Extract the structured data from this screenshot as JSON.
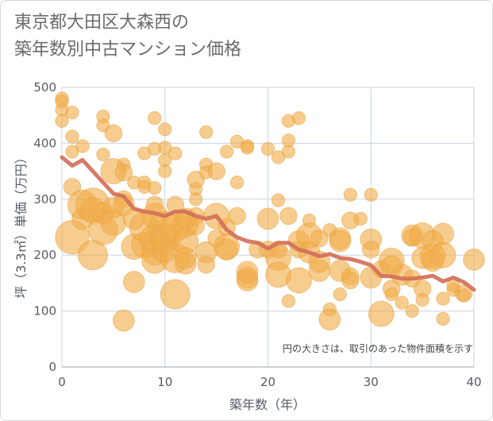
{
  "title": {
    "line1": "東京都大田区大森西の",
    "line2": "築年数別中古マンション価格"
  },
  "colors": {
    "bubble": "#f0ac4a",
    "bubble_stroke": "#e8a03a",
    "line": "#d2705a",
    "grid": "#c9d6e3",
    "axis": "#9aa4b0"
  },
  "chart_data": {
    "type": "scatter",
    "xlabel": "築年数（年）",
    "ylabel": "坪（3.3㎡）単価（万円）",
    "xlim": [
      0,
      40
    ],
    "ylim": [
      0,
      500
    ],
    "xticks": [
      "0",
      "10",
      "20",
      "30",
      "40"
    ],
    "yticks": [
      "0",
      "100",
      "200",
      "300",
      "400",
      "500"
    ],
    "grid": true,
    "note": "円の大きさは、取引のあった物件面積を示す",
    "trend_line": {
      "x": [
        0,
        1,
        2,
        3,
        4,
        5,
        6,
        7,
        8,
        9,
        10,
        11,
        12,
        13,
        14,
        15,
        16,
        17,
        18,
        19,
        20,
        21,
        22,
        23,
        24,
        25,
        26,
        27,
        28,
        29,
        30,
        31,
        32,
        33,
        34,
        35,
        36,
        37,
        38,
        39,
        40
      ],
      "y": [
        375,
        360,
        370,
        350,
        330,
        310,
        305,
        283,
        278,
        275,
        270,
        278,
        278,
        270,
        265,
        270,
        245,
        232,
        225,
        222,
        212,
        222,
        222,
        210,
        205,
        198,
        202,
        195,
        193,
        188,
        182,
        163,
        162,
        158,
        158,
        160,
        163,
        153,
        160,
        152,
        138
      ]
    },
    "bubbles": [
      {
        "x": 0,
        "y": 480,
        "s": 2
      },
      {
        "x": 0,
        "y": 460,
        "s": 2
      },
      {
        "x": 0,
        "y": 440,
        "s": 2
      },
      {
        "x": 0,
        "y": 475,
        "s": 2
      },
      {
        "x": 1,
        "y": 455,
        "s": 2
      },
      {
        "x": 1,
        "y": 412,
        "s": 2
      },
      {
        "x": 1,
        "y": 385,
        "s": 2
      },
      {
        "x": 1,
        "y": 232,
        "s": 7
      },
      {
        "x": 1,
        "y": 322,
        "s": 3
      },
      {
        "x": 2,
        "y": 395,
        "s": 2
      },
      {
        "x": 2,
        "y": 290,
        "s": 6
      },
      {
        "x": 2,
        "y": 265,
        "s": 4
      },
      {
        "x": 3,
        "y": 290,
        "s": 7
      },
      {
        "x": 3,
        "y": 200,
        "s": 6
      },
      {
        "x": 3,
        "y": 280,
        "s": 5
      },
      {
        "x": 4,
        "y": 448,
        "s": 2
      },
      {
        "x": 4,
        "y": 432,
        "s": 2
      },
      {
        "x": 4,
        "y": 380,
        "s": 2
      },
      {
        "x": 4,
        "y": 245,
        "s": 6
      },
      {
        "x": 4,
        "y": 275,
        "s": 4
      },
      {
        "x": 5,
        "y": 418,
        "s": 3
      },
      {
        "x": 5,
        "y": 350,
        "s": 5
      },
      {
        "x": 5,
        "y": 285,
        "s": 4
      },
      {
        "x": 5,
        "y": 258,
        "s": 5
      },
      {
        "x": 6,
        "y": 362,
        "s": 2
      },
      {
        "x": 6,
        "y": 348,
        "s": 3
      },
      {
        "x": 6,
        "y": 300,
        "s": 3
      },
      {
        "x": 6,
        "y": 290,
        "s": 4
      },
      {
        "x": 6,
        "y": 83,
        "s": 4
      },
      {
        "x": 7,
        "y": 330,
        "s": 2
      },
      {
        "x": 7,
        "y": 265,
        "s": 4
      },
      {
        "x": 7,
        "y": 215,
        "s": 5
      },
      {
        "x": 7,
        "y": 152,
        "s": 4
      },
      {
        "x": 8,
        "y": 382,
        "s": 2
      },
      {
        "x": 8,
        "y": 330,
        "s": 2
      },
      {
        "x": 8,
        "y": 322,
        "s": 2
      },
      {
        "x": 8,
        "y": 250,
        "s": 6
      },
      {
        "x": 8,
        "y": 218,
        "s": 5
      },
      {
        "x": 9,
        "y": 445,
        "s": 2
      },
      {
        "x": 9,
        "y": 390,
        "s": 2
      },
      {
        "x": 9,
        "y": 320,
        "s": 2
      },
      {
        "x": 9,
        "y": 290,
        "s": 3
      },
      {
        "x": 9,
        "y": 270,
        "s": 5
      },
      {
        "x": 9,
        "y": 228,
        "s": 6
      },
      {
        "x": 9,
        "y": 205,
        "s": 5
      },
      {
        "x": 9,
        "y": 190,
        "s": 5
      },
      {
        "x": 10,
        "y": 425,
        "s": 2
      },
      {
        "x": 10,
        "y": 392,
        "s": 2
      },
      {
        "x": 10,
        "y": 370,
        "s": 2
      },
      {
        "x": 10,
        "y": 350,
        "s": 2
      },
      {
        "x": 10,
        "y": 248,
        "s": 7
      },
      {
        "x": 10,
        "y": 230,
        "s": 6
      },
      {
        "x": 10,
        "y": 210,
        "s": 5
      },
      {
        "x": 11,
        "y": 382,
        "s": 2
      },
      {
        "x": 11,
        "y": 290,
        "s": 3
      },
      {
        "x": 11,
        "y": 250,
        "s": 6
      },
      {
        "x": 11,
        "y": 195,
        "s": 6
      },
      {
        "x": 11,
        "y": 130,
        "s": 6
      },
      {
        "x": 12,
        "y": 265,
        "s": 4
      },
      {
        "x": 12,
        "y": 255,
        "s": 5
      },
      {
        "x": 12,
        "y": 225,
        "s": 5
      },
      {
        "x": 12,
        "y": 195,
        "s": 4
      },
      {
        "x": 12,
        "y": 185,
        "s": 4
      },
      {
        "x": 13,
        "y": 335,
        "s": 3
      },
      {
        "x": 13,
        "y": 318,
        "s": 2
      },
      {
        "x": 13,
        "y": 300,
        "s": 2
      },
      {
        "x": 13,
        "y": 270,
        "s": 3
      },
      {
        "x": 13,
        "y": 252,
        "s": 3
      },
      {
        "x": 14,
        "y": 420,
        "s": 2
      },
      {
        "x": 14,
        "y": 362,
        "s": 2
      },
      {
        "x": 14,
        "y": 348,
        "s": 2
      },
      {
        "x": 14,
        "y": 205,
        "s": 4
      },
      {
        "x": 14,
        "y": 183,
        "s": 3
      },
      {
        "x": 15,
        "y": 350,
        "s": 3
      },
      {
        "x": 15,
        "y": 270,
        "s": 5
      },
      {
        "x": 15,
        "y": 230,
        "s": 3
      },
      {
        "x": 16,
        "y": 385,
        "s": 2
      },
      {
        "x": 16,
        "y": 250,
        "s": 3
      },
      {
        "x": 16,
        "y": 215,
        "s": 5
      },
      {
        "x": 16,
        "y": 210,
        "s": 4
      },
      {
        "x": 17,
        "y": 403,
        "s": 2
      },
      {
        "x": 17,
        "y": 330,
        "s": 2
      },
      {
        "x": 17,
        "y": 270,
        "s": 3
      },
      {
        "x": 18,
        "y": 395,
        "s": 2
      },
      {
        "x": 18,
        "y": 392,
        "s": 2
      },
      {
        "x": 18,
        "y": 160,
        "s": 4
      },
      {
        "x": 18,
        "y": 155,
        "s": 4
      },
      {
        "x": 18,
        "y": 170,
        "s": 4
      },
      {
        "x": 19,
        "y": 210,
        "s": 3
      },
      {
        "x": 20,
        "y": 390,
        "s": 2
      },
      {
        "x": 20,
        "y": 265,
        "s": 4
      },
      {
        "x": 20,
        "y": 210,
        "s": 3
      },
      {
        "x": 21,
        "y": 375,
        "s": 2
      },
      {
        "x": 21,
        "y": 298,
        "s": 2
      },
      {
        "x": 21,
        "y": 210,
        "s": 3
      },
      {
        "x": 21,
        "y": 195,
        "s": 5
      },
      {
        "x": 21,
        "y": 165,
        "s": 5
      },
      {
        "x": 22,
        "y": 440,
        "s": 2
      },
      {
        "x": 22,
        "y": 405,
        "s": 2
      },
      {
        "x": 22,
        "y": 385,
        "s": 2
      },
      {
        "x": 22,
        "y": 270,
        "s": 3
      },
      {
        "x": 22,
        "y": 118,
        "s": 2
      },
      {
        "x": 23,
        "y": 445,
        "s": 2
      },
      {
        "x": 23,
        "y": 225,
        "s": 4
      },
      {
        "x": 23,
        "y": 210,
        "s": 3
      },
      {
        "x": 23,
        "y": 155,
        "s": 5
      },
      {
        "x": 24,
        "y": 262,
        "s": 2
      },
      {
        "x": 24,
        "y": 235,
        "s": 5
      },
      {
        "x": 24,
        "y": 205,
        "s": 4
      },
      {
        "x": 25,
        "y": 230,
        "s": 3
      },
      {
        "x": 25,
        "y": 188,
        "s": 4
      },
      {
        "x": 25,
        "y": 172,
        "s": 4
      },
      {
        "x": 26,
        "y": 245,
        "s": 2
      },
      {
        "x": 26,
        "y": 103,
        "s": 2
      },
      {
        "x": 26,
        "y": 85,
        "s": 4
      },
      {
        "x": 27,
        "y": 230,
        "s": 4
      },
      {
        "x": 27,
        "y": 225,
        "s": 4
      },
      {
        "x": 27,
        "y": 172,
        "s": 4
      },
      {
        "x": 27,
        "y": 130,
        "s": 2
      },
      {
        "x": 28,
        "y": 308,
        "s": 2
      },
      {
        "x": 28,
        "y": 262,
        "s": 3
      },
      {
        "x": 28,
        "y": 162,
        "s": 3
      },
      {
        "x": 28,
        "y": 155,
        "s": 3
      },
      {
        "x": 29,
        "y": 265,
        "s": 2
      },
      {
        "x": 30,
        "y": 308,
        "s": 2
      },
      {
        "x": 30,
        "y": 228,
        "s": 4
      },
      {
        "x": 30,
        "y": 210,
        "s": 3
      },
      {
        "x": 30,
        "y": 160,
        "s": 4
      },
      {
        "x": 31,
        "y": 95,
        "s": 5
      },
      {
        "x": 31,
        "y": 175,
        "s": 3
      },
      {
        "x": 32,
        "y": 190,
        "s": 5
      },
      {
        "x": 32,
        "y": 180,
        "s": 4
      },
      {
        "x": 32,
        "y": 140,
        "s": 3
      },
      {
        "x": 32,
        "y": 130,
        "s": 2
      },
      {
        "x": 33,
        "y": 165,
        "s": 4
      },
      {
        "x": 33,
        "y": 115,
        "s": 2
      },
      {
        "x": 34,
        "y": 235,
        "s": 4
      },
      {
        "x": 34,
        "y": 232,
        "s": 3
      },
      {
        "x": 34,
        "y": 158,
        "s": 3
      },
      {
        "x": 34,
        "y": 100,
        "s": 2
      },
      {
        "x": 35,
        "y": 235,
        "s": 5
      },
      {
        "x": 35,
        "y": 195,
        "s": 4
      },
      {
        "x": 35,
        "y": 140,
        "s": 3
      },
      {
        "x": 35,
        "y": 120,
        "s": 2
      },
      {
        "x": 36,
        "y": 225,
        "s": 4
      },
      {
        "x": 36,
        "y": 198,
        "s": 5
      },
      {
        "x": 36,
        "y": 190,
        "s": 4
      },
      {
        "x": 37,
        "y": 238,
        "s": 4
      },
      {
        "x": 37,
        "y": 200,
        "s": 5
      },
      {
        "x": 37,
        "y": 122,
        "s": 2
      },
      {
        "x": 37,
        "y": 86,
        "s": 2
      },
      {
        "x": 38,
        "y": 145,
        "s": 2
      },
      {
        "x": 38,
        "y": 138,
        "s": 2
      },
      {
        "x": 39,
        "y": 132,
        "s": 3
      },
      {
        "x": 39,
        "y": 128,
        "s": 2
      },
      {
        "x": 40,
        "y": 192,
        "s": 4
      }
    ]
  }
}
